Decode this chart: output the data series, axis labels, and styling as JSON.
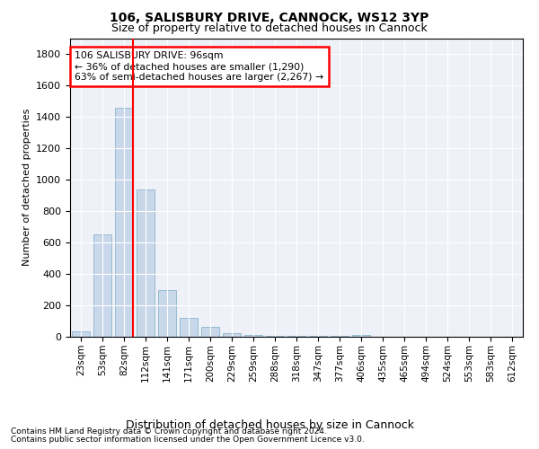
{
  "title1": "106, SALISBURY DRIVE, CANNOCK, WS12 3YP",
  "title2": "Size of property relative to detached houses in Cannock",
  "xlabel": "Distribution of detached houses by size in Cannock",
  "ylabel": "Number of detached properties",
  "categories": [
    "23sqm",
    "53sqm",
    "82sqm",
    "112sqm",
    "141sqm",
    "171sqm",
    "200sqm",
    "229sqm",
    "259sqm",
    "288sqm",
    "318sqm",
    "347sqm",
    "377sqm",
    "406sqm",
    "435sqm",
    "465sqm",
    "494sqm",
    "524sqm",
    "553sqm",
    "583sqm",
    "612sqm"
  ],
  "values": [
    35,
    650,
    1460,
    935,
    295,
    120,
    65,
    25,
    10,
    8,
    5,
    4,
    3,
    10,
    0,
    0,
    0,
    0,
    0,
    0,
    0
  ],
  "bar_color": "#c8d8ea",
  "bar_edge_color": "#8ab4cc",
  "annotation_line1": "106 SALISBURY DRIVE: 96sqm",
  "annotation_line2": "← 36% of detached houses are smaller (1,290)",
  "annotation_line3": "63% of semi-detached houses are larger (2,267) →",
  "ylim": [
    0,
    1900
  ],
  "yticks": [
    0,
    200,
    400,
    600,
    800,
    1000,
    1200,
    1400,
    1600,
    1800
  ],
  "bg_color": "#eef2f8",
  "footnote1": "Contains HM Land Registry data © Crown copyright and database right 2024.",
  "footnote2": "Contains public sector information licensed under the Open Government Licence v3.0."
}
